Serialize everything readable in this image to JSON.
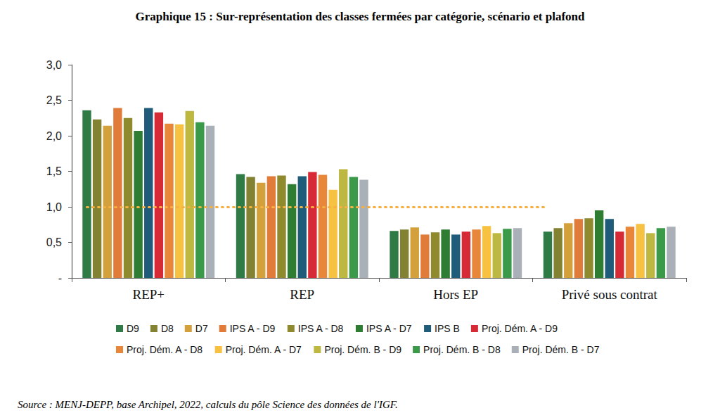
{
  "chart_data": {
    "type": "bar",
    "title": "Graphique 15 : Sur-représentation des classes fermées par catégorie, scénario et plafond",
    "source": "Source : MENJ-DEPP, base Archipel, 2022, calculs du pôle Science des données de l'IGF.",
    "categories": [
      "REP+",
      "REP",
      "Hors EP",
      "Privé sous contrat"
    ],
    "series": [
      {
        "name": "D9",
        "color": "#2E7B45",
        "values": [
          2.36,
          1.46,
          0.66,
          0.65
        ]
      },
      {
        "name": "D8",
        "color": "#828232",
        "values": [
          2.23,
          1.42,
          0.68,
          0.7
        ]
      },
      {
        "name": "D7",
        "color": "#D4A03C",
        "values": [
          2.14,
          1.34,
          0.71,
          0.77
        ]
      },
      {
        "name": "IPS A - D9",
        "color": "#E07B39",
        "values": [
          2.39,
          1.43,
          0.61,
          0.83
        ]
      },
      {
        "name": "IPS A - D8",
        "color": "#8F8A2E",
        "values": [
          2.25,
          1.44,
          0.64,
          0.84
        ]
      },
      {
        "name": "IPS A - D7",
        "color": "#2E7D32",
        "values": [
          2.07,
          1.32,
          0.68,
          0.95
        ]
      },
      {
        "name": "IPS B",
        "color": "#1F5C7A",
        "values": [
          2.39,
          1.43,
          0.61,
          0.83
        ]
      },
      {
        "name": "Proj. Dém. A - D9",
        "color": "#D62B36",
        "values": [
          2.33,
          1.49,
          0.65,
          0.65
        ]
      },
      {
        "name": "Proj. Dém. A - D8",
        "color": "#E8873A",
        "values": [
          2.17,
          1.45,
          0.68,
          0.72
        ]
      },
      {
        "name": "Proj. Dém. A - D7",
        "color": "#F7C242",
        "values": [
          2.16,
          1.24,
          0.73,
          0.76
        ]
      },
      {
        "name": "Proj. Dém. B - D9",
        "color": "#BDB842",
        "values": [
          2.35,
          1.53,
          0.63,
          0.63
        ]
      },
      {
        "name": "Proj. Dém. B - D8",
        "color": "#3A9A4A",
        "values": [
          2.19,
          1.42,
          0.69,
          0.7
        ]
      },
      {
        "name": "Proj. Dém. B - D7",
        "color": "#A9B0B8",
        "values": [
          2.14,
          1.38,
          0.7,
          0.72
        ]
      }
    ],
    "reference_value": 1.0,
    "ylim": [
      0,
      3.0
    ],
    "yticks": [
      {
        "value": 0,
        "label": "-"
      },
      {
        "value": 0.5,
        "label": "0,5"
      },
      {
        "value": 1.0,
        "label": "1,0"
      },
      {
        "value": 1.5,
        "label": "1,5"
      },
      {
        "value": 2.0,
        "label": "2,0"
      },
      {
        "value": 2.5,
        "label": "2,5"
      },
      {
        "value": 3.0,
        "label": "3,0"
      }
    ],
    "grid": false,
    "legend": "bottom"
  }
}
